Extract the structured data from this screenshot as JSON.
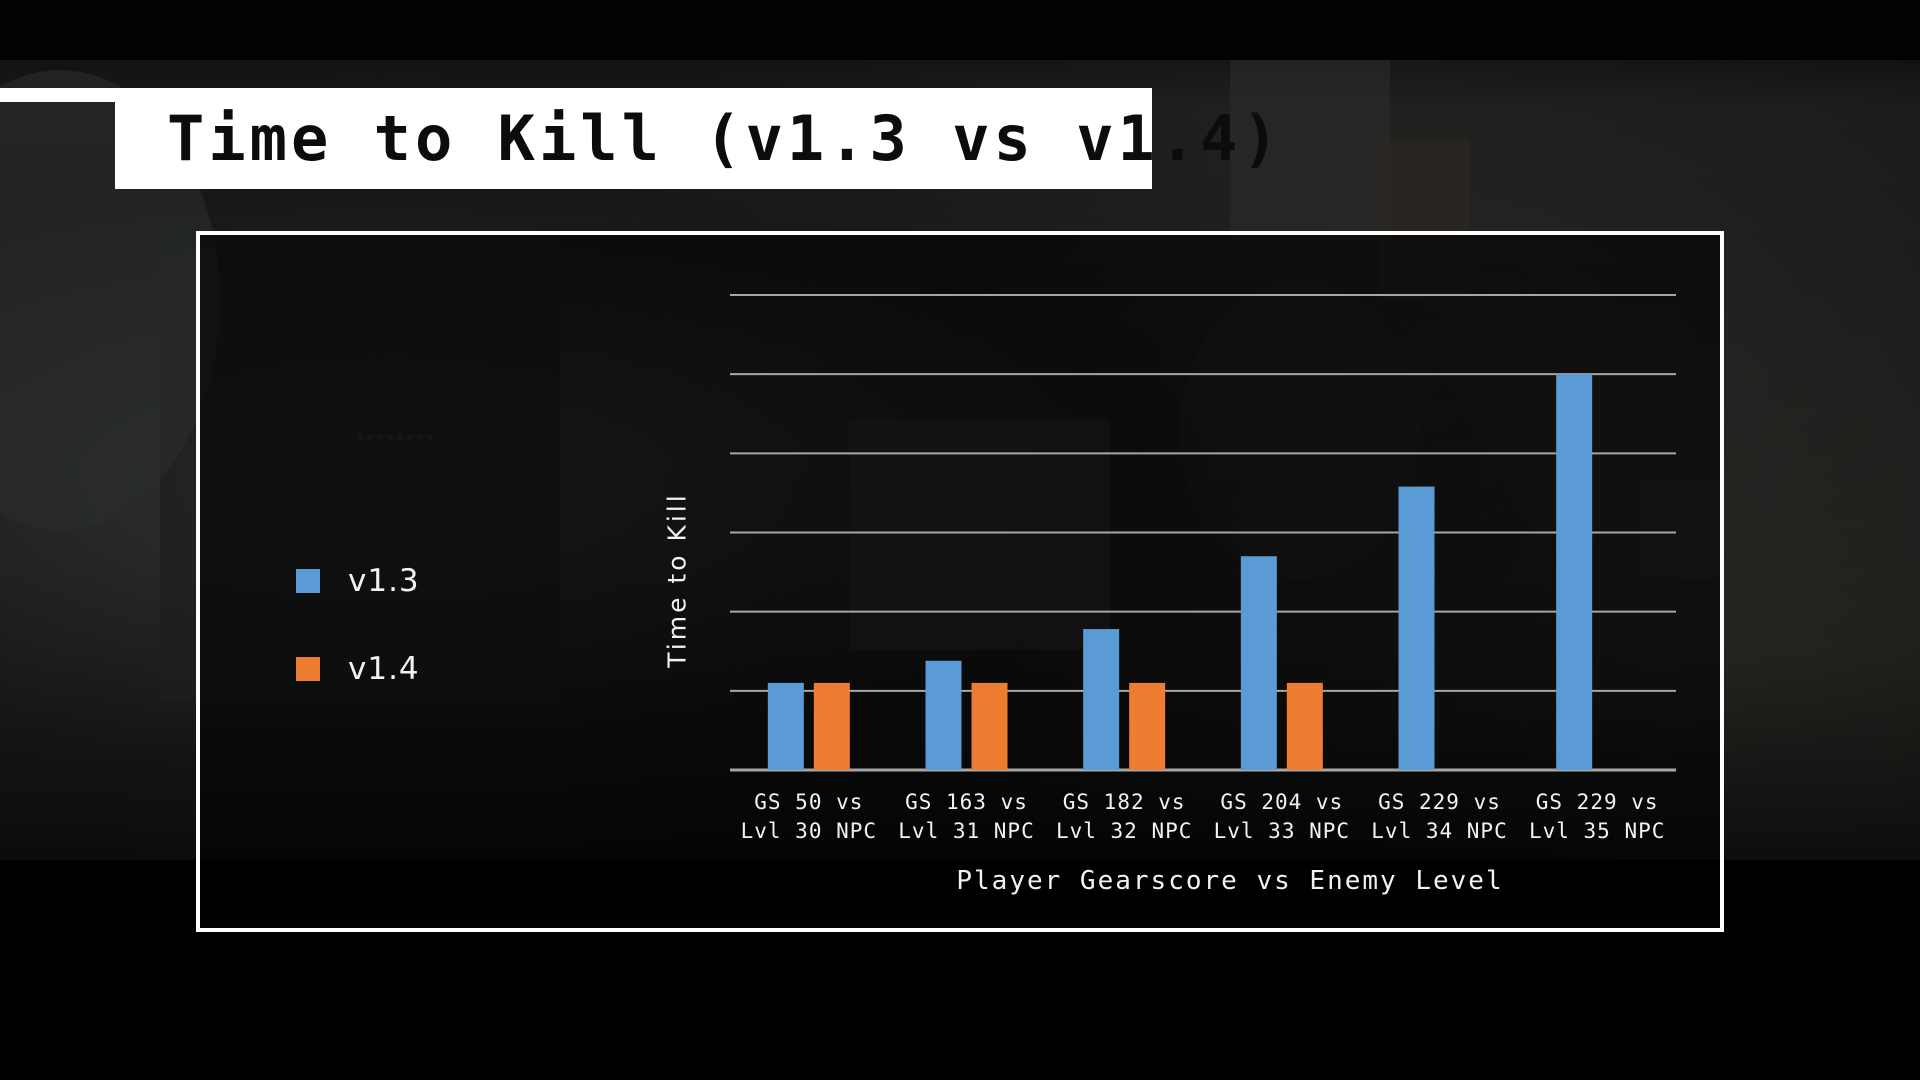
{
  "title": "Time to Kill (v1.3 vs v1.4)",
  "colors": {
    "v13": "#5b9bd5",
    "v14": "#ed7d31",
    "grid": "#a6a6a6",
    "frame": "#ffffff"
  },
  "chart_data": {
    "type": "bar",
    "title": "",
    "xlabel": "Player Gearscore vs Enemy Level",
    "ylabel": "Time to Kill",
    "ylim": [
      0,
      6
    ],
    "grid": true,
    "legend_position": "left",
    "categories": [
      [
        "GS 50 vs",
        "Lvl 30 NPC"
      ],
      [
        "GS 163 vs",
        "Lvl 31 NPC"
      ],
      [
        "GS 182 vs",
        "Lvl 32 NPC"
      ],
      [
        "GS 204 vs",
        "Lvl 33 NPC"
      ],
      [
        "GS 229 vs",
        "Lvl 34 NPC"
      ],
      [
        "GS 229 vs",
        "Lvl 35 NPC"
      ]
    ],
    "series": [
      {
        "name": "v1.3",
        "color": "#5b9bd5",
        "values": [
          1.1,
          1.38,
          1.78,
          2.7,
          3.58,
          5.0
        ]
      },
      {
        "name": "v1.4",
        "color": "#ed7d31",
        "values": [
          1.1,
          1.1,
          1.1,
          1.1,
          null,
          null
        ]
      }
    ]
  }
}
